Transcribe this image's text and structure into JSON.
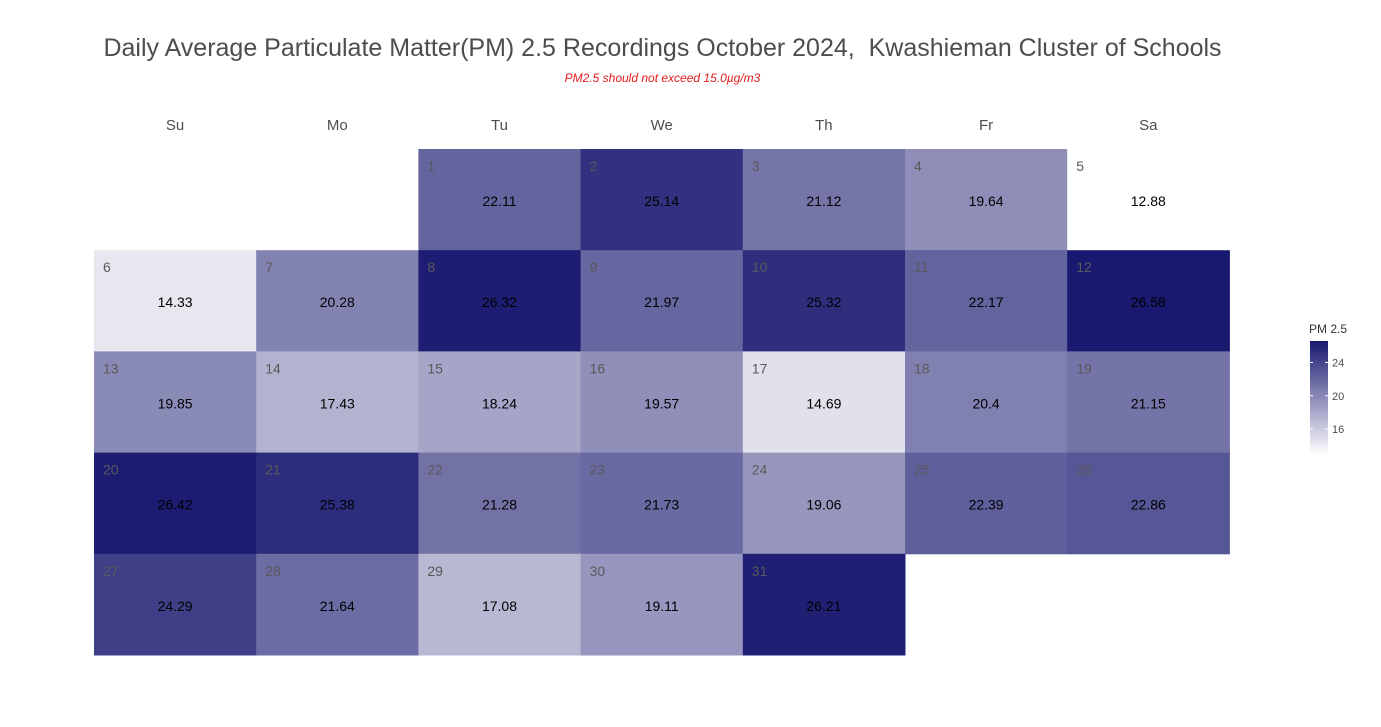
{
  "title": "Daily Average Particulate Matter(PM) 2.5 Recordings October 2024,  Kwashieman Cluster of Schools",
  "subtitle": "PM2.5 should not exceed 15.0µg/m3",
  "chart_data": {
    "type": "heatmap",
    "layout": "calendar",
    "month": "October 2024",
    "first_weekday_index": 2,
    "weekdays": [
      "Su",
      "Mo",
      "Tu",
      "We",
      "Th",
      "Fr",
      "Sa"
    ],
    "days": [
      1,
      2,
      3,
      4,
      5,
      6,
      7,
      8,
      9,
      10,
      11,
      12,
      13,
      14,
      15,
      16,
      17,
      18,
      19,
      20,
      21,
      22,
      23,
      24,
      25,
      26,
      27,
      28,
      29,
      30,
      31
    ],
    "values": [
      22.11,
      25.14,
      21.12,
      19.64,
      12.88,
      14.33,
      20.28,
      26.32,
      21.97,
      25.32,
      22.17,
      26.58,
      19.85,
      17.43,
      18.24,
      19.57,
      14.69,
      20.4,
      21.15,
      26.42,
      25.38,
      21.28,
      21.73,
      19.06,
      22.39,
      22.86,
      24.29,
      21.64,
      17.08,
      19.11,
      26.21
    ],
    "legend": {
      "title": "PM 2.5",
      "ticks": [
        "24",
        "20",
        "16"
      ],
      "tick_values": [
        24,
        20,
        16
      ],
      "range": [
        12.88,
        26.58
      ],
      "color_low": "#ffffff",
      "color_high": "#191970",
      "position": "right"
    },
    "colors": {
      "label_on_tile": "#000000",
      "day_number": "#595959",
      "weekday_header": "#4d4d4d"
    }
  }
}
